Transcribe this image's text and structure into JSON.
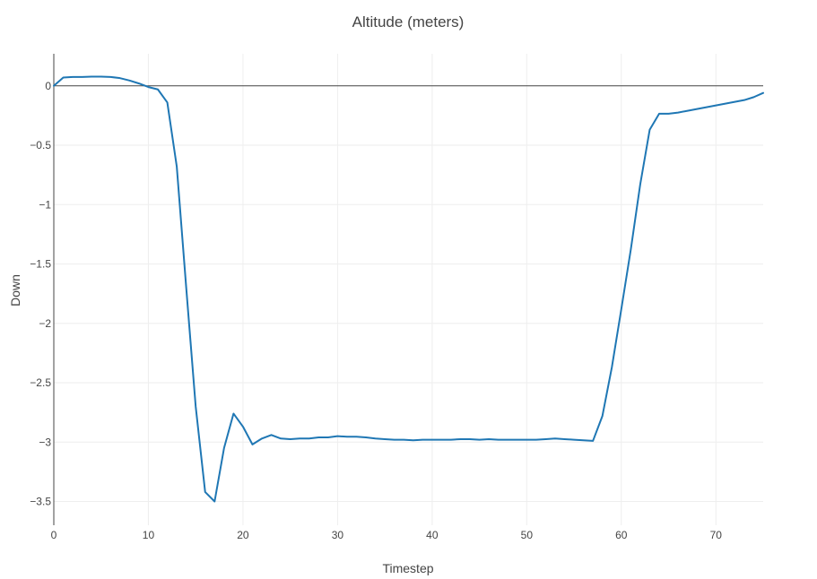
{
  "chart_data": {
    "type": "line",
    "title": "Altitude (meters)",
    "xlabel": "Timestep",
    "ylabel": "Down",
    "xlim": [
      0,
      75
    ],
    "ylim": [
      -3.7,
      0.27
    ],
    "xticks": [
      0,
      10,
      20,
      30,
      40,
      50,
      60,
      70
    ],
    "yticks": [
      0,
      -0.5,
      -1,
      -1.5,
      -2,
      -2.5,
      -3,
      -3.5
    ],
    "ytick_labels": [
      "0",
      "−0.5",
      "−1",
      "−1.5",
      "−2",
      "−2.5",
      "−3",
      "−3.5"
    ],
    "grid": true,
    "series": [
      {
        "color": "#1f77b4",
        "x": [
          0,
          1,
          2,
          3,
          4,
          5,
          6,
          7,
          8,
          9,
          10,
          11,
          12,
          13,
          14,
          15,
          16,
          17,
          18,
          19,
          20,
          21,
          22,
          23,
          24,
          25,
          26,
          27,
          28,
          29,
          30,
          31,
          32,
          33,
          34,
          35,
          36,
          37,
          38,
          39,
          40,
          41,
          42,
          43,
          44,
          45,
          46,
          47,
          48,
          49,
          50,
          51,
          52,
          53,
          54,
          55,
          56,
          57,
          58,
          59,
          60,
          61,
          62,
          63,
          64,
          65,
          66,
          67,
          68,
          69,
          70,
          71,
          72,
          73,
          74,
          75
        ],
        "y": [
          0,
          0.07,
          0.075,
          0.075,
          0.078,
          0.078,
          0.075,
          0.065,
          0.045,
          0.02,
          -0.01,
          -0.03,
          -0.14,
          -0.68,
          -1.7,
          -2.7,
          -3.42,
          -3.5,
          -3.05,
          -2.76,
          -2.87,
          -3.02,
          -2.97,
          -2.94,
          -2.97,
          -2.975,
          -2.97,
          -2.97,
          -2.96,
          -2.96,
          -2.95,
          -2.955,
          -2.955,
          -2.96,
          -2.97,
          -2.975,
          -2.98,
          -2.98,
          -2.985,
          -2.98,
          -2.98,
          -2.98,
          -2.98,
          -2.975,
          -2.975,
          -2.98,
          -2.975,
          -2.98,
          -2.98,
          -2.98,
          -2.98,
          -2.98,
          -2.975,
          -2.97,
          -2.975,
          -2.98,
          -2.985,
          -2.99,
          -2.78,
          -2.37,
          -1.88,
          -1.38,
          -0.83,
          -0.37,
          -0.235,
          -0.235,
          -0.225,
          -0.21,
          -0.195,
          -0.18,
          -0.165,
          -0.15,
          -0.135,
          -0.12,
          -0.095,
          -0.06
        ]
      }
    ]
  }
}
